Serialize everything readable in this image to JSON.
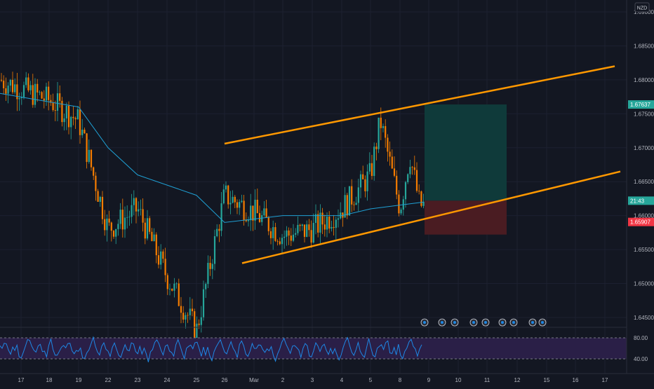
{
  "currency": "NZD",
  "price_axis": {
    "ticks": [
      "1.69000",
      "1.68500",
      "1.68000",
      "1.67500",
      "1.67000",
      "1.66500",
      "1.66000",
      "1.65500",
      "1.65000",
      "1.64500"
    ],
    "tick_values": [
      1.69,
      1.685,
      1.68,
      1.675,
      1.67,
      1.665,
      1.66,
      1.655,
      1.65,
      1.645
    ],
    "labels": [
      {
        "text": "1.67637",
        "value": 1.67637,
        "color": "#26a69a"
      },
      {
        "text": "21:43",
        "value": 1.6622,
        "color": "#26a69a"
      },
      {
        "text": "1.65907",
        "value": 1.65907,
        "color": "#f23645"
      }
    ]
  },
  "time_axis": {
    "labels": [
      "17",
      "18",
      "19",
      "22",
      "23",
      "24",
      "25",
      "26",
      "Mar",
      "2",
      "3",
      "4",
      "5",
      "8",
      "9",
      "10",
      "11",
      "12",
      "15",
      "16",
      "17"
    ]
  },
  "rsi_axis": {
    "ticks": [
      "80.00",
      "40.00"
    ]
  },
  "colors": {
    "background": "#131722",
    "up": "#26a69a",
    "down": "#f57c00",
    "ma": "#1fa0d4",
    "channel": "#ff9800",
    "target": "#0f3a3a",
    "stop": "#4a1c22",
    "rsi": "#1e88e5",
    "rsi_band": "#2a1f47"
  },
  "chart_data": {
    "type": "candlestick",
    "ylim": [
      1.6425,
      1.6935
    ],
    "price_series": [
      {
        "x": "17",
        "y": 1.68
      },
      {
        "x": "18",
        "y": 1.677
      },
      {
        "x": "19",
        "y": 1.674
      },
      {
        "x": "22",
        "y": 1.658
      },
      {
        "x": "23",
        "y": 1.661
      },
      {
        "x": "24",
        "y": 1.651
      },
      {
        "x": "25",
        "y": 1.643
      },
      {
        "x": "26",
        "y": 1.663
      },
      {
        "x": "Mar",
        "y": 1.6605
      },
      {
        "x": "2",
        "y": 1.657
      },
      {
        "x": "3",
        "y": 1.658
      },
      {
        "x": "4",
        "y": 1.661
      },
      {
        "x": "5",
        "y": 1.666
      },
      {
        "x": "5",
        "y": 1.674
      },
      {
        "x": "8",
        "y": 1.661
      },
      {
        "x": "8",
        "y": 1.669
      },
      {
        "x": "8",
        "y": 1.6615
      }
    ],
    "moving_average": [
      {
        "x": "17",
        "y": 1.678
      },
      {
        "x": "19",
        "y": 1.676
      },
      {
        "x": "22",
        "y": 1.67
      },
      {
        "x": "23",
        "y": 1.666
      },
      {
        "x": "25",
        "y": 1.663
      },
      {
        "x": "26",
        "y": 1.659
      },
      {
        "x": "Mar",
        "y": 1.6595
      },
      {
        "x": "2",
        "y": 1.66
      },
      {
        "x": "4",
        "y": 1.66
      },
      {
        "x": "5",
        "y": 1.661
      },
      {
        "x": "8",
        "y": 1.662
      }
    ],
    "channel_upper": [
      {
        "x": "26",
        "y": 1.6706
      },
      {
        "x": "17",
        "y": 1.682
      }
    ],
    "channel_lower": [
      {
        "x": "26",
        "y": 1.653
      },
      {
        "x": "17",
        "y": 1.6665
      }
    ],
    "position": {
      "entry": 1.6622,
      "target": 1.67637,
      "stop": 1.65907
    },
    "rsi": {
      "upper": 80,
      "lower": 40,
      "values": [
        62,
        58,
        66,
        70,
        55,
        48,
        60,
        52,
        64,
        45,
        38,
        50,
        62,
        72,
        80,
        68,
        55,
        48,
        60,
        70,
        58,
        52,
        46,
        64,
        74,
        62,
        50,
        44,
        58,
        66
      ]
    }
  }
}
